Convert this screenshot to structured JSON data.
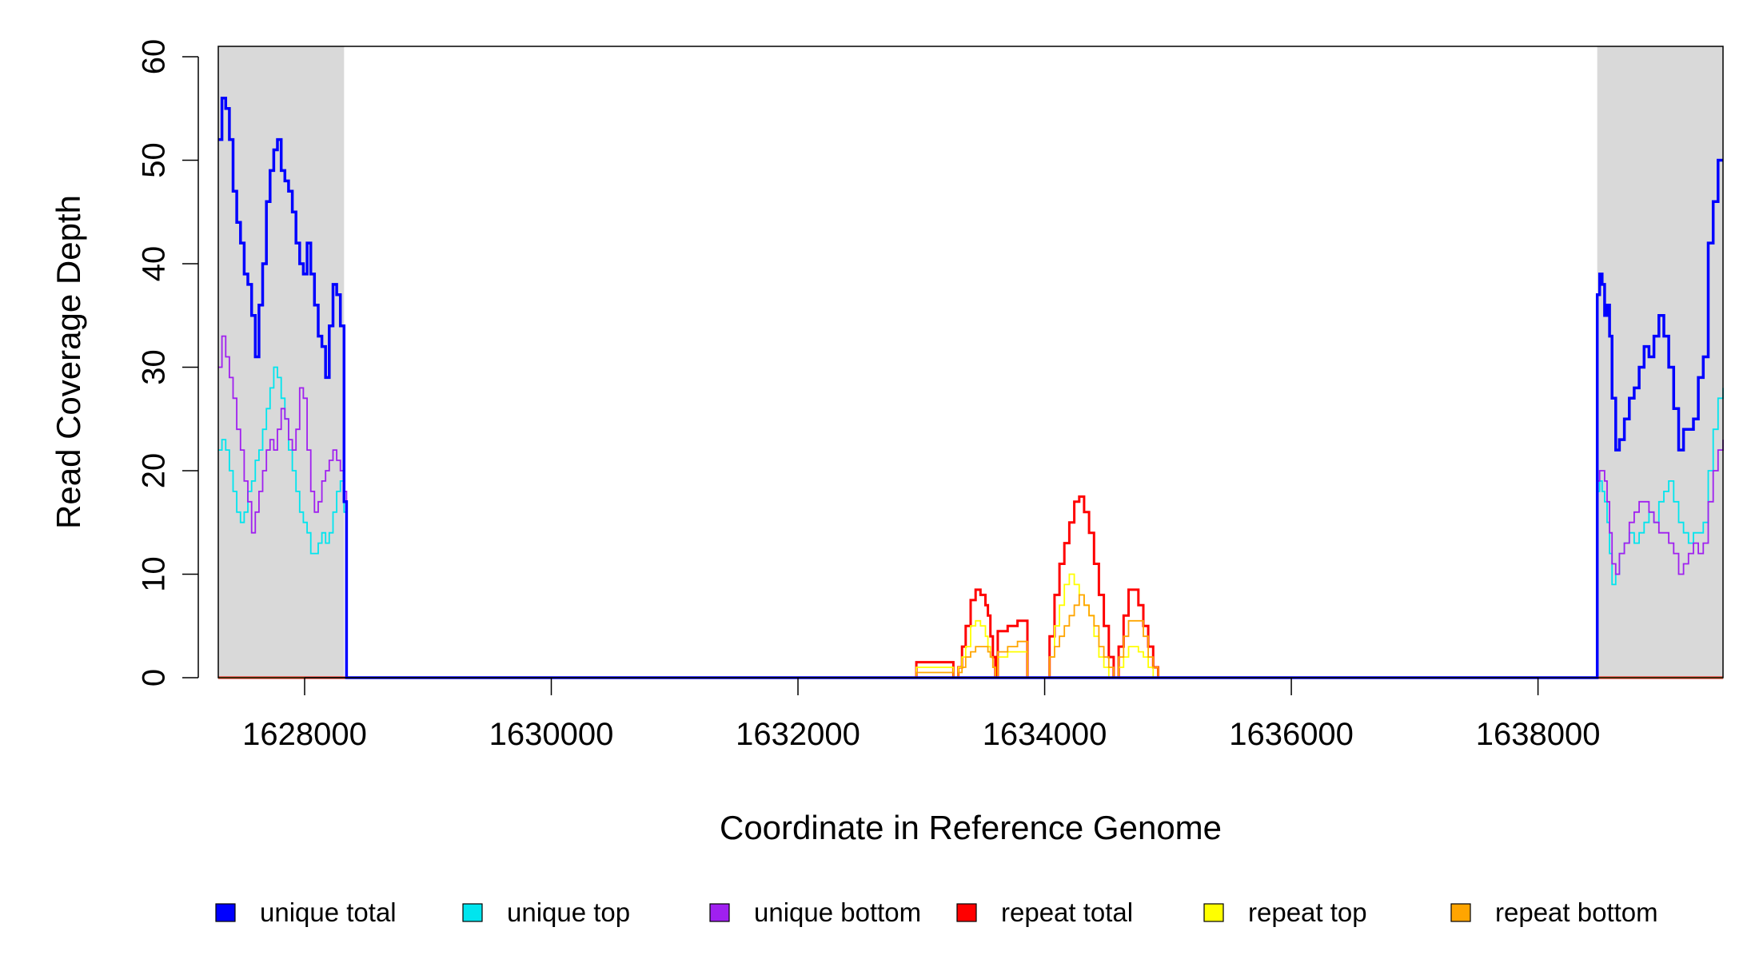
{
  "chart_data": {
    "type": "line",
    "title": "",
    "xlabel": "Coordinate in Reference Genome",
    "ylabel": "Read Coverage Depth",
    "xlim": [
      1627300,
      1639500
    ],
    "ylim": [
      0,
      61
    ],
    "x_ticks": [
      1628000,
      1630000,
      1632000,
      1634000,
      1636000,
      1638000
    ],
    "x_tick_labels": [
      "1628000",
      "1630000",
      "1632000",
      "1634000",
      "1636000",
      "1638000"
    ],
    "y_ticks": [
      0,
      10,
      20,
      30,
      40,
      50,
      60
    ],
    "y_tick_labels": [
      "0",
      "10",
      "20",
      "30",
      "40",
      "50",
      "60"
    ],
    "grid": false,
    "legend_position": "bottom",
    "shaded_regions": [
      {
        "x0": 1627300,
        "x1": 1628320,
        "color": "#d9d9d9"
      },
      {
        "x0": 1638480,
        "x1": 1639500,
        "color": "#d9d9d9"
      }
    ],
    "series": [
      {
        "name": "unique total",
        "color": "#0000ff",
        "x": [
          1627300,
          1627330,
          1627360,
          1627390,
          1627420,
          1627450,
          1627480,
          1627510,
          1627540,
          1627570,
          1627600,
          1627630,
          1627660,
          1627690,
          1627720,
          1627750,
          1627780,
          1627810,
          1627840,
          1627870,
          1627900,
          1627930,
          1627960,
          1627990,
          1628020,
          1628050,
          1628080,
          1628110,
          1628140,
          1628170,
          1628200,
          1628230,
          1628260,
          1628290,
          1628320,
          1628340,
          1628345,
          1638470,
          1638480,
          1638500,
          1638520,
          1638540,
          1638560,
          1638580,
          1638600,
          1638630,
          1638660,
          1638700,
          1638740,
          1638780,
          1638820,
          1638860,
          1638900,
          1638940,
          1638980,
          1639020,
          1639060,
          1639100,
          1639140,
          1639180,
          1639220,
          1639260,
          1639300,
          1639340,
          1639380,
          1639420,
          1639460,
          1639500
        ],
        "y": [
          52,
          56,
          55,
          52,
          47,
          44,
          42,
          39,
          38,
          35,
          31,
          36,
          40,
          46,
          49,
          51,
          52,
          49,
          48,
          47,
          45,
          42,
          40,
          39,
          42,
          39,
          36,
          33,
          32,
          29,
          34,
          38,
          37,
          34,
          17,
          0,
          0,
          0,
          37,
          39,
          38,
          35,
          36,
          33,
          27,
          22,
          23,
          25,
          27,
          28,
          30,
          32,
          31,
          33,
          35,
          33,
          30,
          26,
          22,
          24,
          24,
          25,
          29,
          31,
          42,
          46,
          50,
          50
        ]
      },
      {
        "name": "unique top",
        "color": "#00e5ee",
        "x": [
          1627300,
          1627330,
          1627360,
          1627390,
          1627420,
          1627450,
          1627480,
          1627510,
          1627540,
          1627570,
          1627600,
          1627630,
          1627660,
          1627690,
          1627720,
          1627750,
          1627780,
          1627810,
          1627840,
          1627870,
          1627900,
          1627930,
          1627960,
          1627990,
          1628020,
          1628050,
          1628080,
          1628110,
          1628140,
          1628170,
          1628200,
          1628230,
          1628260,
          1628290,
          1628320,
          1628340,
          1628345,
          1638470,
          1638480,
          1638500,
          1638520,
          1638540,
          1638560,
          1638580,
          1638600,
          1638630,
          1638660,
          1638700,
          1638740,
          1638780,
          1638820,
          1638860,
          1638900,
          1638940,
          1638980,
          1639020,
          1639060,
          1639100,
          1639140,
          1639180,
          1639220,
          1639260,
          1639300,
          1639340,
          1639380,
          1639420,
          1639460,
          1639500
        ],
        "y": [
          22,
          23,
          22,
          20,
          18,
          16,
          15,
          16,
          18,
          19,
          21,
          22,
          24,
          26,
          28,
          30,
          29,
          27,
          25,
          22,
          20,
          18,
          16,
          15,
          14,
          12,
          12,
          13,
          14,
          13,
          14,
          16,
          18,
          19,
          16,
          0,
          0,
          0,
          18,
          19,
          18,
          17,
          15,
          12,
          9,
          10,
          12,
          13,
          14,
          13,
          14,
          15,
          16,
          15,
          17,
          18,
          19,
          17,
          15,
          14,
          13,
          14,
          14,
          15,
          20,
          24,
          27,
          28
        ]
      },
      {
        "name": "unique bottom",
        "color": "#a020f0",
        "x": [
          1627300,
          1627330,
          1627360,
          1627390,
          1627420,
          1627450,
          1627480,
          1627510,
          1627540,
          1627570,
          1627600,
          1627630,
          1627660,
          1627690,
          1627720,
          1627750,
          1627780,
          1627810,
          1627840,
          1627870,
          1627900,
          1627930,
          1627960,
          1627990,
          1628020,
          1628050,
          1628080,
          1628110,
          1628140,
          1628170,
          1628200,
          1628230,
          1628260,
          1628290,
          1628320,
          1628340,
          1628345,
          1638470,
          1638480,
          1638500,
          1638520,
          1638540,
          1638560,
          1638580,
          1638600,
          1638630,
          1638660,
          1638700,
          1638740,
          1638780,
          1638820,
          1638860,
          1638900,
          1638940,
          1638980,
          1639020,
          1639060,
          1639100,
          1639140,
          1639180,
          1639220,
          1639260,
          1639300,
          1639340,
          1639380,
          1639420,
          1639460,
          1639500
        ],
        "y": [
          30,
          33,
          31,
          29,
          27,
          24,
          22,
          19,
          17,
          14,
          16,
          18,
          20,
          22,
          23,
          22,
          24,
          26,
          25,
          23,
          22,
          24,
          28,
          27,
          22,
          18,
          16,
          17,
          19,
          20,
          21,
          22,
          21,
          20,
          18,
          0,
          0,
          0,
          19,
          20,
          20,
          19,
          17,
          14,
          11,
          10,
          12,
          13,
          15,
          16,
          17,
          17,
          16,
          15,
          14,
          14,
          13,
          12,
          10,
          11,
          12,
          13,
          12,
          13,
          17,
          20,
          22,
          23
        ]
      },
      {
        "name": "repeat total",
        "color": "#ff0000",
        "x": [
          1627300,
          1632950,
          1632960,
          1633200,
          1633260,
          1633300,
          1633330,
          1633360,
          1633400,
          1633440,
          1633480,
          1633520,
          1633540,
          1633560,
          1633580,
          1633600,
          1633620,
          1633700,
          1633780,
          1633840,
          1633860,
          1633940,
          1634000,
          1634040,
          1634080,
          1634120,
          1634160,
          1634200,
          1634240,
          1634280,
          1634320,
          1634360,
          1634400,
          1634440,
          1634480,
          1634520,
          1634560,
          1634600,
          1634640,
          1634680,
          1634720,
          1634760,
          1634800,
          1634840,
          1634880,
          1634920,
          1634960,
          1635000,
          1635030,
          1635050,
          1639500
        ],
        "y": [
          0,
          0,
          1.5,
          1.5,
          0,
          1,
          3,
          5,
          7.5,
          8.5,
          8,
          7,
          6,
          4,
          2,
          0,
          4.5,
          5,
          5.5,
          5.5,
          0,
          0,
          0,
          4,
          8,
          11,
          13,
          15,
          17,
          17.5,
          16,
          14,
          11,
          8,
          5,
          2,
          0,
          3,
          6,
          8.5,
          8.5,
          7,
          5,
          3,
          1,
          0,
          0,
          0,
          0,
          0,
          0
        ]
      },
      {
        "name": "repeat top",
        "color": "#ffff00",
        "x": [
          1627300,
          1632950,
          1632960,
          1633200,
          1633260,
          1633300,
          1633330,
          1633360,
          1633400,
          1633440,
          1633480,
          1633520,
          1633540,
          1633560,
          1633580,
          1633600,
          1633620,
          1633700,
          1633780,
          1633840,
          1633860,
          1633940,
          1634000,
          1634040,
          1634080,
          1634120,
          1634160,
          1634200,
          1634240,
          1634280,
          1634320,
          1634360,
          1634400,
          1634440,
          1634480,
          1634520,
          1634560,
          1634600,
          1634640,
          1634680,
          1634720,
          1634760,
          1634800,
          1634840,
          1634880,
          1634920,
          1634960,
          1635000,
          1635030,
          1635050,
          1639500
        ],
        "y": [
          0,
          0,
          1,
          1,
          0,
          1,
          2,
          3,
          5,
          5.5,
          5,
          4,
          3,
          2,
          1,
          0,
          2,
          2.5,
          2.5,
          2.5,
          0,
          0,
          0,
          2,
          5,
          7,
          9,
          10,
          9,
          8,
          7,
          6,
          4,
          2,
          1,
          0,
          0,
          1,
          2,
          3,
          3,
          2.5,
          2,
          1,
          0,
          0,
          0,
          0,
          0,
          0,
          0
        ]
      },
      {
        "name": "repeat bottom",
        "color": "#ffa500",
        "x": [
          1627300,
          1632950,
          1632960,
          1633200,
          1633260,
          1633300,
          1633330,
          1633360,
          1633400,
          1633440,
          1633480,
          1633520,
          1633540,
          1633560,
          1633580,
          1633600,
          1633620,
          1633700,
          1633780,
          1633840,
          1633860,
          1633940,
          1634000,
          1634040,
          1634080,
          1634120,
          1634160,
          1634200,
          1634240,
          1634280,
          1634320,
          1634360,
          1634400,
          1634440,
          1634480,
          1634520,
          1634560,
          1634600,
          1634640,
          1634680,
          1634720,
          1634760,
          1634800,
          1634840,
          1634880,
          1634920,
          1634960,
          1635000,
          1635030,
          1635050,
          1639500
        ],
        "y": [
          0,
          0,
          0.5,
          0.5,
          0,
          0.5,
          1,
          2,
          2.5,
          3,
          3,
          3,
          2.5,
          2,
          1,
          0,
          2.5,
          3,
          3.5,
          3.5,
          0,
          0,
          0,
          2,
          3,
          4,
          5,
          6,
          7,
          8,
          7,
          6,
          5,
          3,
          2,
          1,
          0,
          2,
          4,
          5.5,
          5.5,
          5.5,
          4,
          2,
          1,
          0,
          0,
          0,
          0,
          0,
          0
        ]
      }
    ]
  }
}
